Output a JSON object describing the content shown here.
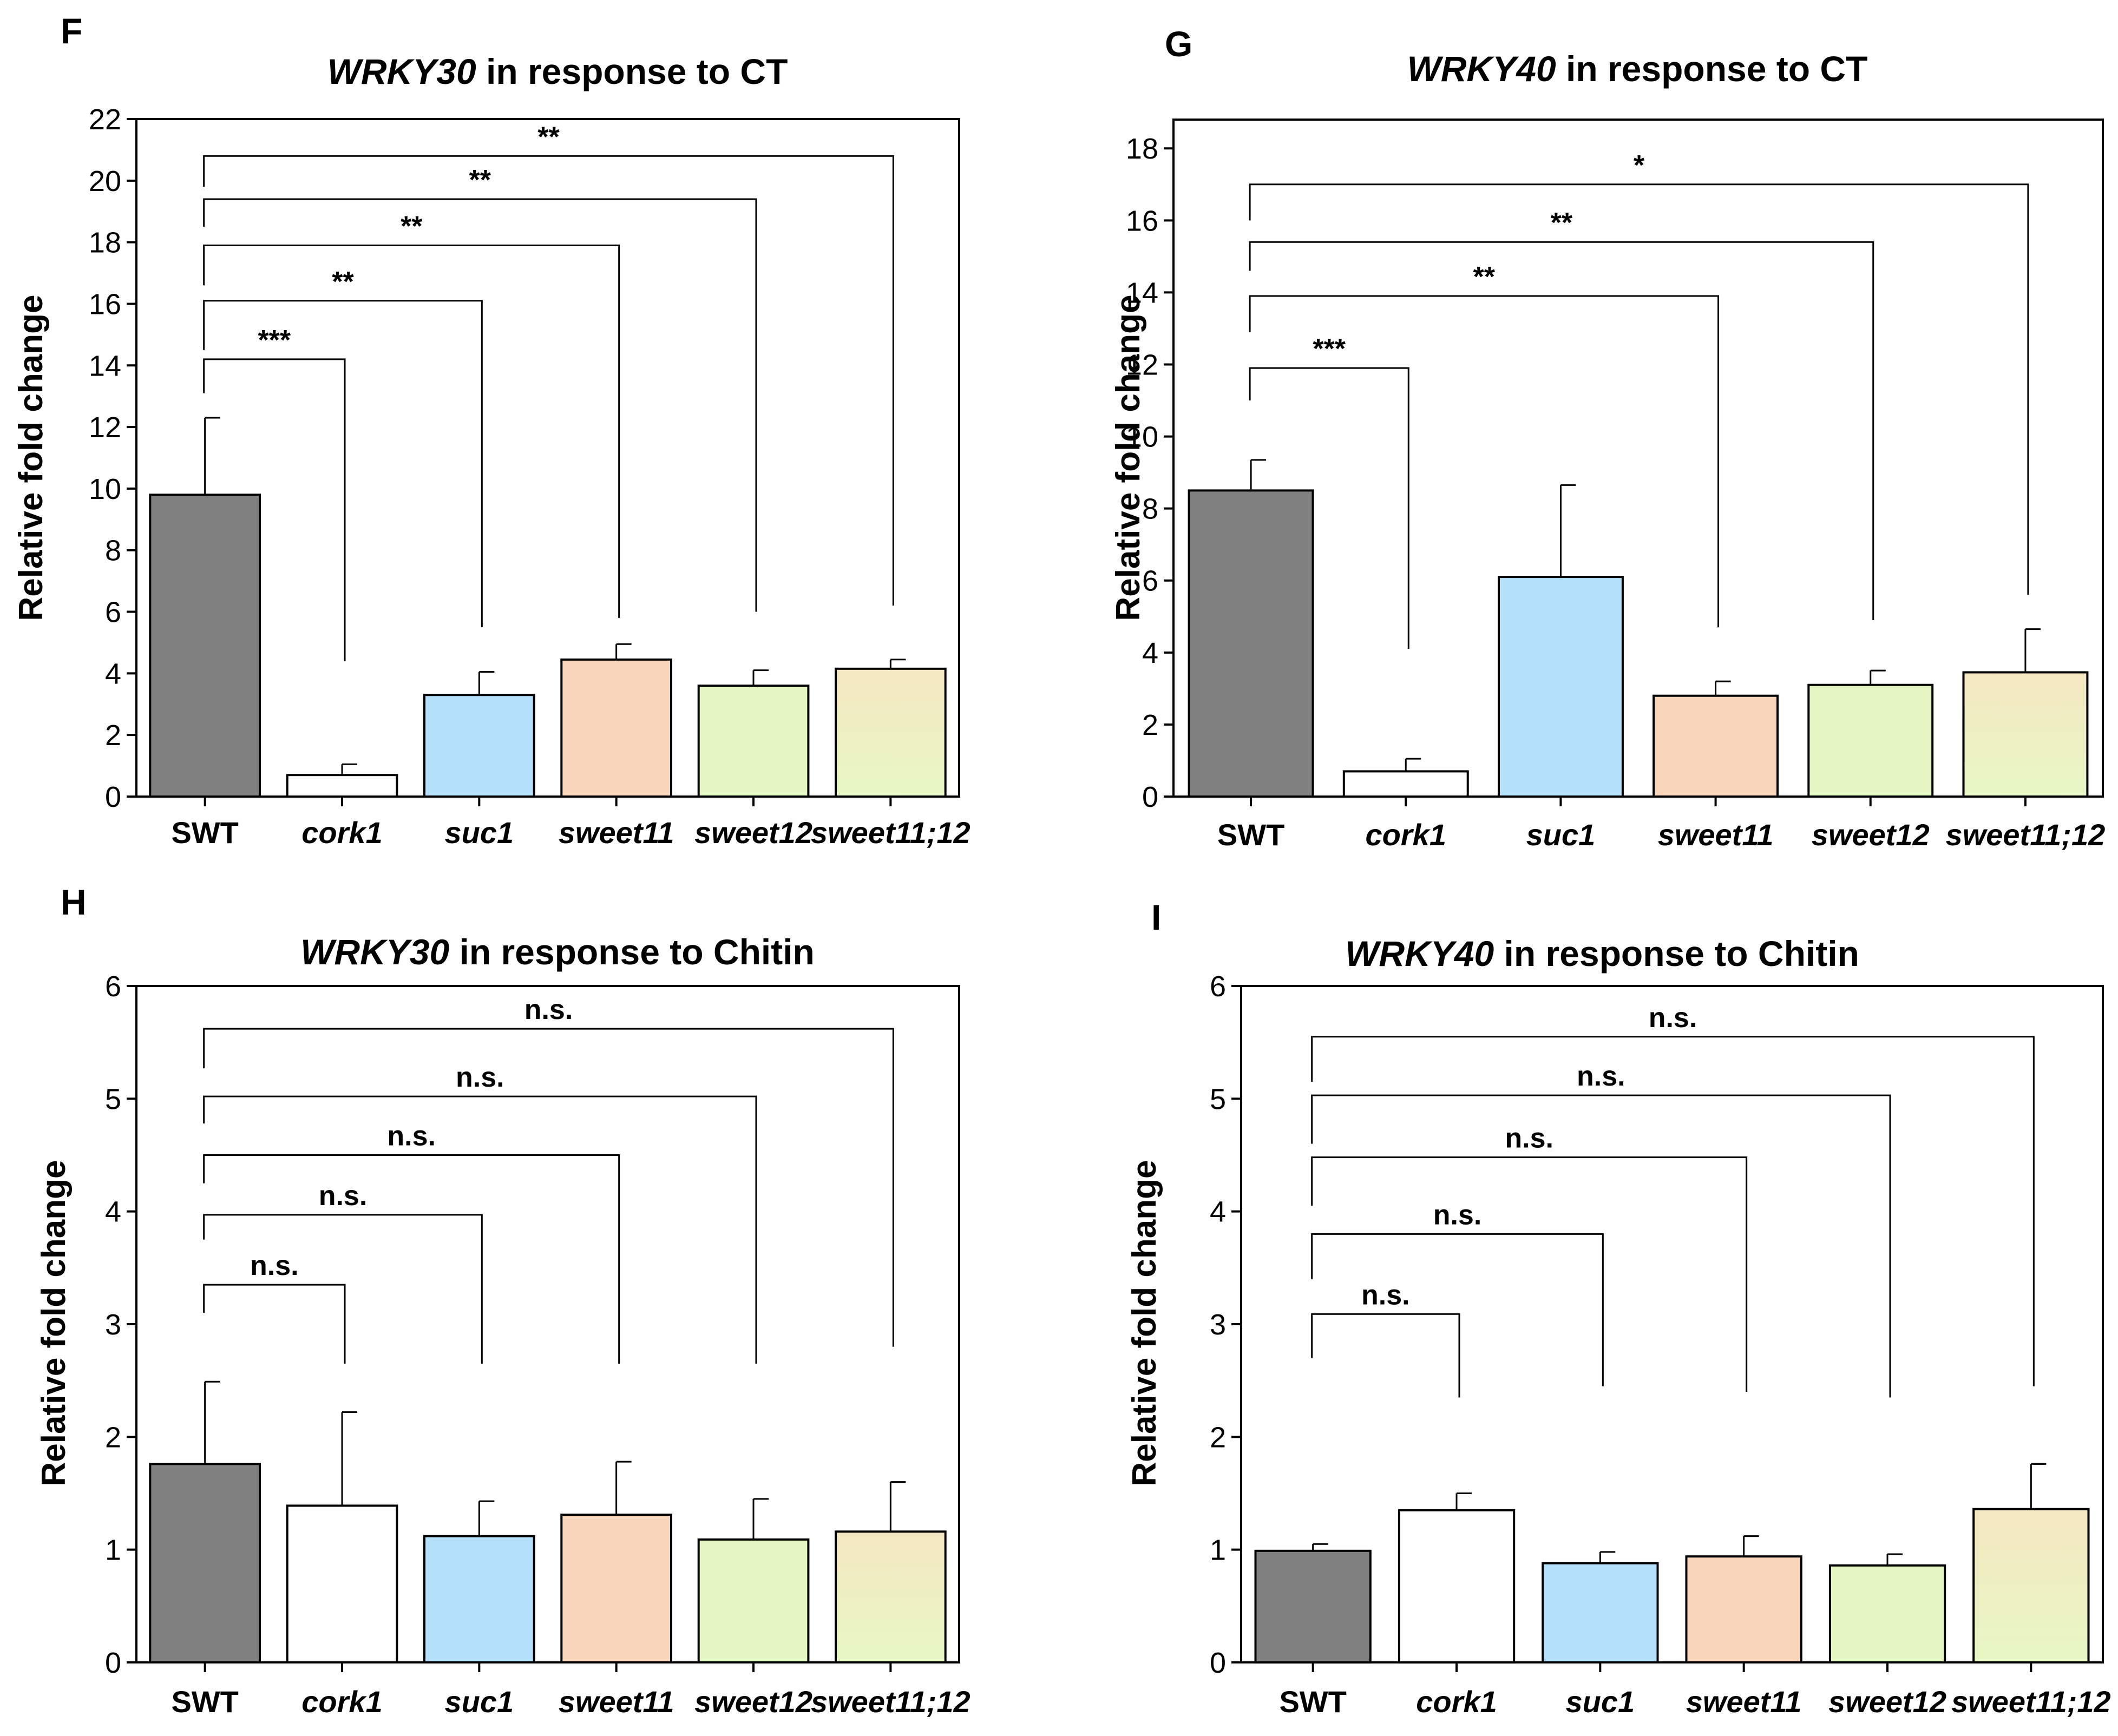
{
  "figure": {
    "colors": {
      "bar_swt": "#808080",
      "bar_cork1": "#ffffff",
      "bar_suc1": "#b5e0fb",
      "bar_sweet11": "#f9d6b9",
      "bar_sweet12": "#e4f7c2",
      "bar_sweet11_12_top": "#f5e7c2",
      "bar_sweet11_12_bottom": "#e7f7c4",
      "axis": "#000000"
    }
  },
  "chart_data": [
    {
      "panel": "F",
      "type": "bar",
      "title_italic": "WRKY30",
      "title_rest": " in response to CT",
      "xlabel": "",
      "ylabel": "Relative fold change",
      "ylim": [
        0,
        22
      ],
      "yticks": [
        "0",
        "2",
        "4",
        "6",
        "8",
        "10",
        "12",
        "14",
        "16",
        "18",
        "20",
        "22"
      ],
      "categories": [
        "SWT",
        "cork1",
        "suc1",
        "sweet11",
        "sweet12",
        "sweet11;12"
      ],
      "category_italic": [
        false,
        true,
        true,
        true,
        true,
        true
      ],
      "values": [
        9.8,
        0.7,
        3.3,
        4.45,
        3.6,
        4.15
      ],
      "errors": [
        2.5,
        0.35,
        0.75,
        0.5,
        0.5,
        0.3
      ],
      "comparisons": [
        {
          "to": 1,
          "label": "***",
          "bracket_y": 14.2,
          "left_drop": 13.1,
          "right_drop": 4.4
        },
        {
          "to": 2,
          "label": "**",
          "bracket_y": 16.1,
          "left_drop": 14.5,
          "right_drop": 5.5
        },
        {
          "to": 3,
          "label": "**",
          "bracket_y": 17.9,
          "left_drop": 16.6,
          "right_drop": 5.8
        },
        {
          "to": 4,
          "label": "**",
          "bracket_y": 19.4,
          "left_drop": 18.5,
          "right_drop": 6.0
        },
        {
          "to": 5,
          "label": "**",
          "bracket_y": 20.8,
          "left_drop": 19.8,
          "right_drop": 6.2
        }
      ]
    },
    {
      "panel": "G",
      "type": "bar",
      "title_italic": "WRKY40",
      "title_rest": " in response to CT",
      "xlabel": "",
      "ylabel": "Relative fold change",
      "ylim": [
        0,
        18.8
      ],
      "yticks": [
        "0",
        "2",
        "4",
        "6",
        "8",
        "10",
        "12",
        "14",
        "16",
        "18"
      ],
      "categories": [
        "SWT",
        "cork1",
        "suc1",
        "sweet11",
        "sweet12",
        "sweet11;12"
      ],
      "category_italic": [
        false,
        true,
        true,
        true,
        true,
        true
      ],
      "values": [
        8.5,
        0.7,
        6.1,
        2.8,
        3.1,
        3.45
      ],
      "errors": [
        0.85,
        0.35,
        2.55,
        0.4,
        0.4,
        1.2
      ],
      "comparisons": [
        {
          "to": 1,
          "label": "***",
          "bracket_y": 11.9,
          "left_drop": 11.0,
          "right_drop": 4.1
        },
        {
          "to": 3,
          "label": "**",
          "bracket_y": 13.9,
          "left_drop": 12.9,
          "right_drop": 4.7
        },
        {
          "to": 4,
          "label": "**",
          "bracket_y": 15.4,
          "left_drop": 14.6,
          "right_drop": 4.9
        },
        {
          "to": 5,
          "label": "*",
          "bracket_y": 17.0,
          "left_drop": 16.0,
          "right_drop": 5.6
        }
      ]
    },
    {
      "panel": "H",
      "type": "bar",
      "title_italic": "WRKY30",
      "title_rest": " in response to Chitin",
      "xlabel": "",
      "ylabel": "Relative fold change",
      "ylim": [
        0,
        6
      ],
      "yticks": [
        "0",
        "1",
        "2",
        "3",
        "4",
        "5",
        "6"
      ],
      "categories": [
        "SWT",
        "cork1",
        "suc1",
        "sweet11",
        "sweet12",
        "sweet11;12"
      ],
      "category_italic": [
        false,
        true,
        true,
        true,
        true,
        true
      ],
      "values": [
        1.76,
        1.39,
        1.12,
        1.31,
        1.09,
        1.16
      ],
      "errors": [
        0.73,
        0.83,
        0.31,
        0.47,
        0.36,
        0.44
      ],
      "comparisons": [
        {
          "to": 1,
          "label": "n.s.",
          "bracket_y": 3.35,
          "left_drop": 3.1,
          "right_drop": 2.65
        },
        {
          "to": 2,
          "label": "n.s.",
          "bracket_y": 3.97,
          "left_drop": 3.75,
          "right_drop": 2.65
        },
        {
          "to": 3,
          "label": "n.s.",
          "bracket_y": 4.5,
          "left_drop": 4.25,
          "right_drop": 2.65
        },
        {
          "to": 4,
          "label": "n.s.",
          "bracket_y": 5.02,
          "left_drop": 4.78,
          "right_drop": 2.65
        },
        {
          "to": 5,
          "label": "n.s.",
          "bracket_y": 5.62,
          "left_drop": 5.27,
          "right_drop": 2.8
        }
      ]
    },
    {
      "panel": "I",
      "type": "bar",
      "title_italic": "WRKY40",
      "title_rest": " in response to Chitin",
      "xlabel": "",
      "ylabel": "Relative fold change",
      "ylim": [
        0,
        6
      ],
      "yticks": [
        "0",
        "1",
        "2",
        "3",
        "4",
        "5",
        "6"
      ],
      "categories": [
        "SWT",
        "cork1",
        "suc1",
        "sweet11",
        "sweet12",
        "sweet11;12"
      ],
      "category_italic": [
        false,
        true,
        true,
        true,
        true,
        true
      ],
      "values": [
        0.99,
        1.35,
        0.88,
        0.94,
        0.86,
        1.36
      ],
      "errors": [
        0.06,
        0.15,
        0.1,
        0.18,
        0.1,
        0.4
      ],
      "comparisons": [
        {
          "to": 1,
          "label": "n.s.",
          "bracket_y": 3.09,
          "left_drop": 2.7,
          "right_drop": 2.35
        },
        {
          "to": 2,
          "label": "n.s.",
          "bracket_y": 3.8,
          "left_drop": 3.4,
          "right_drop": 2.45
        },
        {
          "to": 3,
          "label": "n.s.",
          "bracket_y": 4.48,
          "left_drop": 4.05,
          "right_drop": 2.4
        },
        {
          "to": 4,
          "label": "n.s.",
          "bracket_y": 5.03,
          "left_drop": 4.6,
          "right_drop": 2.35
        },
        {
          "to": 5,
          "label": "n.s.",
          "bracket_y": 5.55,
          "left_drop": 5.15,
          "right_drop": 2.45
        }
      ]
    }
  ]
}
